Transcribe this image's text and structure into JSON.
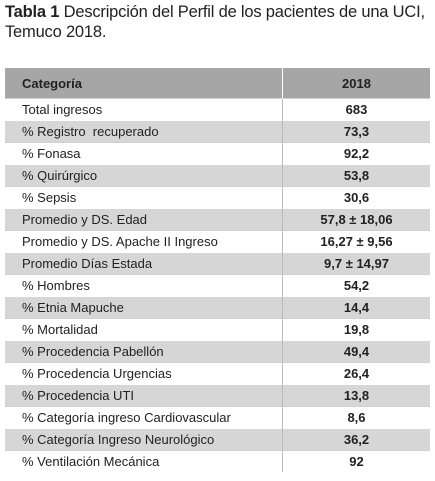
{
  "caption": {
    "label": "Tabla 1",
    "text": "Descripción del Perfil de los pacientes de una UCI, Temuco 2018."
  },
  "table": {
    "header": [
      "Categoría",
      "2018"
    ],
    "rows": [
      [
        "Total ingresos",
        "683"
      ],
      [
        "% Registro  recuperado",
        "73,3"
      ],
      [
        "% Fonasa",
        "92,2"
      ],
      [
        "% Quirúrgico",
        "53,8"
      ],
      [
        "% Sepsis",
        "30,6"
      ],
      [
        "Promedio y DS. Edad",
        "57,8 ± 18,06"
      ],
      [
        "Promedio y DS. Apache II Ingreso",
        "16,27 ± 9,56"
      ],
      [
        "Promedio Días Estada",
        "9,7 ± 14,97"
      ],
      [
        "% Hombres",
        "54,2"
      ],
      [
        "% Etnia Mapuche",
        "14,4"
      ],
      [
        "% Mortalidad",
        "19,8"
      ],
      [
        "% Procedencia Pabellón",
        "49,4"
      ],
      [
        "% Procedencia Urgencias",
        "26,4"
      ],
      [
        "% Procedencia UTI",
        "13,8"
      ],
      [
        "% Categoría ingreso Cardiovascular",
        "8,6"
      ],
      [
        "% Categoría Ingreso Neurológico",
        "36,2"
      ],
      [
        "% Ventilación Mecánica",
        "92"
      ]
    ]
  }
}
